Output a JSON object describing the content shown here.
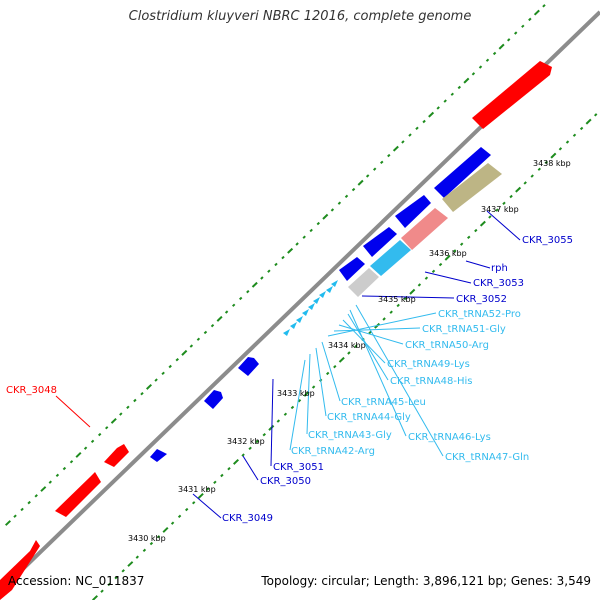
{
  "title": "Clostridium kluyveri NBRC 12016, complete genome",
  "footer": {
    "accession": "Accession: NC_011837",
    "topology": "Topology: circular; Length: 3,896,121 bp; Genes: 3,549"
  },
  "colors": {
    "backbone": "#8c8c8c",
    "tick": "#1e8c1e",
    "gene_plus": "#ff0000",
    "gene_minus": "#0000ee",
    "trna": "#22bbee",
    "trna_label": "#33bbee",
    "gene_label_blue": "#0000cc",
    "gene_label_red": "#ff0000"
  },
  "scale_labels": [
    "3430 kbp",
    "3431 kbp",
    "3432 kbp",
    "3433 kbp",
    "3434 kbp",
    "3435 kbp",
    "3436 kbp",
    "3437 kbp",
    "3438 kbp"
  ],
  "gene_labels": [
    {
      "text": "CKR_3048",
      "color": "red"
    },
    {
      "text": "CKR_3049",
      "color": "blue"
    },
    {
      "text": "CKR_3050",
      "color": "blue"
    },
    {
      "text": "CKR_3051",
      "color": "blue"
    },
    {
      "text": "CKR_3052",
      "color": "blue"
    },
    {
      "text": "CKR_3053",
      "color": "blue"
    },
    {
      "text": "rph",
      "color": "blue"
    },
    {
      "text": "CKR_3055",
      "color": "blue"
    }
  ],
  "trna_labels": [
    "CKR_tRNA52-Pro",
    "CKR_tRNA51-Gly",
    "CKR_tRNA50-Arg",
    "CKR_tRNA49-Lys",
    "CKR_tRNA48-His",
    "CKR_tRNA45-Leu",
    "CKR_tRNA44-Gly",
    "CKR_tRNA43-Gly",
    "CKR_tRNA42-Arg",
    "CKR_tRNA46-Lys",
    "CKR_tRNA47-Gln"
  ]
}
